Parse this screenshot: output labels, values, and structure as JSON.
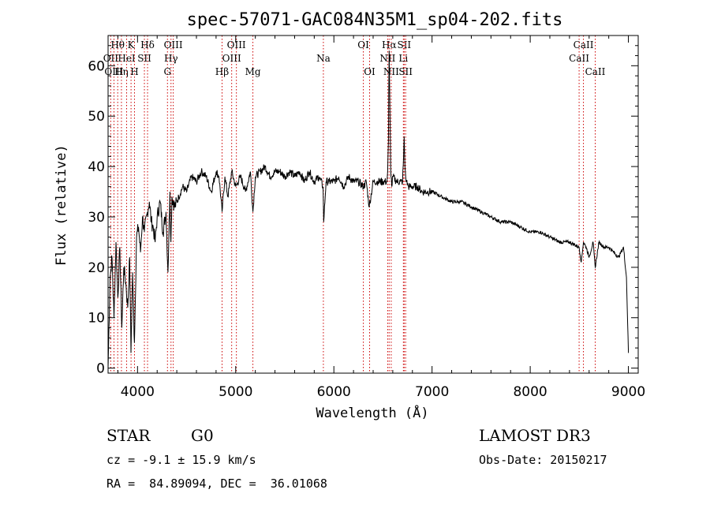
{
  "chart_data": {
    "type": "line",
    "title": "spec-57071-GAC084N35M1_sp04-202.fits",
    "xlabel": "Wavelength (Å)",
    "ylabel": "Flux (relative)",
    "xlim": [
      3700,
      9100
    ],
    "ylim": [
      -1,
      66
    ],
    "x_ticks": [
      4000,
      5000,
      6000,
      7000,
      8000,
      9000
    ],
    "y_ticks": [
      0,
      10,
      20,
      30,
      40,
      50,
      60
    ],
    "series": [
      {
        "name": "spectrum",
        "x": [
          3700,
          3720,
          3740,
          3760,
          3780,
          3800,
          3820,
          3840,
          3860,
          3880,
          3900,
          3920,
          3933,
          3950,
          3968,
          3990,
          4010,
          4030,
          4050,
          4070,
          4101,
          4120,
          4140,
          4160,
          4180,
          4200,
          4230,
          4260,
          4290,
          4310,
          4330,
          4340,
          4350,
          4380,
          4420,
          4460,
          4500,
          4550,
          4600,
          4650,
          4700,
          4750,
          4800,
          4830,
          4861,
          4890,
          4920,
          4960,
          5000,
          5050,
          5100,
          5150,
          5175,
          5200,
          5250,
          5300,
          5350,
          5400,
          5450,
          5500,
          5550,
          5600,
          5650,
          5700,
          5750,
          5800,
          5850,
          5890,
          5896,
          5920,
          5950,
          6000,
          6050,
          6100,
          6150,
          6200,
          6250,
          6300,
          6330,
          6360,
          6400,
          6450,
          6500,
          6540,
          6548,
          6556,
          6563,
          6570,
          6578,
          6590,
          6600,
          6640,
          6680,
          6700,
          6710,
          6716,
          6724,
          6731,
          6740,
          6760,
          6800,
          6850,
          6900,
          6950,
          7000,
          7100,
          7200,
          7300,
          7400,
          7500,
          7600,
          7700,
          7800,
          7900,
          8000,
          8100,
          8200,
          8300,
          8400,
          8498,
          8520,
          8542,
          8570,
          8600,
          8640,
          8662,
          8700,
          8750,
          8800,
          8850,
          8900,
          8950,
          8980,
          9000
        ],
        "y": [
          0,
          18,
          22,
          10,
          25,
          14,
          24,
          8,
          20,
          17,
          12,
          22,
          3,
          19,
          5,
          26,
          28,
          23,
          30,
          27,
          31,
          33,
          29,
          28,
          25,
          30,
          33,
          27,
          31,
          19,
          35,
          25,
          34,
          32,
          34,
          36,
          35,
          38,
          37,
          39,
          38,
          35,
          39,
          38,
          31,
          38,
          34,
          39,
          36,
          38,
          35,
          39,
          31,
          38,
          39,
          40,
          38,
          39,
          39,
          38,
          39,
          38,
          39,
          37,
          39,
          37,
          38,
          36,
          29,
          37,
          37,
          37,
          38,
          36,
          38,
          37,
          37,
          36,
          37,
          32,
          37,
          37,
          37,
          37,
          39,
          45,
          63,
          52,
          40,
          36,
          38,
          37,
          37,
          37,
          42,
          46,
          40,
          38,
          37,
          36,
          36,
          36,
          35,
          35,
          35,
          34,
          33,
          33,
          32,
          31,
          30,
          29,
          29,
          28,
          27,
          27,
          26,
          25,
          25,
          24,
          21,
          25,
          24,
          22,
          25,
          20,
          25,
          24,
          24,
          23,
          22,
          24,
          18,
          3
        ]
      }
    ],
    "emission_lines": [
      {
        "label": "Hθ",
        "wavelength": 3798,
        "row": 1
      },
      {
        "label": "OII",
        "wavelength": 3727,
        "row": 2
      },
      {
        "label": "OIII",
        "wavelength": 3760,
        "row": 3
      },
      {
        "label": "Hη",
        "wavelength": 3836,
        "row": 3
      },
      {
        "label": "HeI",
        "wavelength": 3889,
        "row": 2
      },
      {
        "label": "K",
        "wavelength": 3934,
        "row": 1
      },
      {
        "label": "SII",
        "wavelength": 4070,
        "row": 2
      },
      {
        "label": "H",
        "wavelength": 3969,
        "row": 3
      },
      {
        "label": "Hδ",
        "wavelength": 4102,
        "row": 1
      },
      {
        "label": "OIII",
        "wavelength": 4364,
        "row": 1
      },
      {
        "label": "Hγ",
        "wavelength": 4341,
        "row": 2
      },
      {
        "label": "G",
        "wavelength": 4305,
        "row": 3
      },
      {
        "label": "OIII",
        "wavelength": 5007,
        "row": 1
      },
      {
        "label": "OIII",
        "wavelength": 4959,
        "row": 2
      },
      {
        "label": "Hβ",
        "wavelength": 4861,
        "row": 3
      },
      {
        "label": "Mg",
        "wavelength": 5175,
        "row": 3
      },
      {
        "label": "Na",
        "wavelength": 5893,
        "row": 2
      },
      {
        "label": "OI",
        "wavelength": 6300,
        "row": 1
      },
      {
        "label": "OI",
        "wavelength": 6364,
        "row": 3
      },
      {
        "label": "Hα",
        "wavelength": 6563,
        "row": 1
      },
      {
        "label": "SII",
        "wavelength": 6716,
        "row": 1
      },
      {
        "label": "NII",
        "wavelength": 6548,
        "row": 2
      },
      {
        "label": "Li",
        "wavelength": 6708,
        "row": 2
      },
      {
        "label": "NII",
        "wavelength": 6584,
        "row": 3
      },
      {
        "label": "SII",
        "wavelength": 6731,
        "row": 3
      },
      {
        "label": "CaII",
        "wavelength": 8542,
        "row": 1
      },
      {
        "label": "CaII",
        "wavelength": 8498,
        "row": 2
      },
      {
        "label": "CaII",
        "wavelength": 8662,
        "row": 3
      }
    ]
  },
  "info": {
    "object_class": "STAR",
    "subclass": "G0",
    "redshift": "cz = -9.1 ± 15.9 km/s",
    "coords": "RA =  84.89094, DEC =  36.01068",
    "survey": "LAMOST DR3",
    "obs_date": "Obs-Date: 20150217"
  },
  "colors": {
    "line": "#000000",
    "marker": "#cc0000"
  }
}
